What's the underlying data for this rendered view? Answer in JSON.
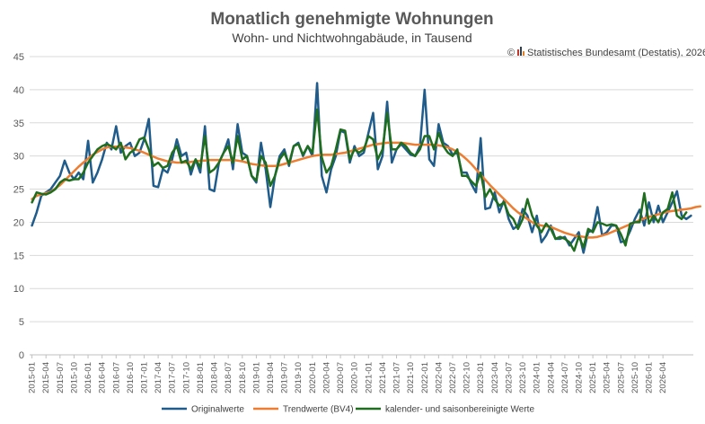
{
  "chart_data": {
    "type": "line",
    "title": "Monatlich genehmigte Wohnungen",
    "subtitle": "Wohn- und Nichtwohngabäude, in Tausend",
    "source": "Statistisches Bundesamt (Destatis), 2026",
    "ylim": [
      0,
      45
    ],
    "yticks": [
      0,
      5,
      10,
      15,
      20,
      25,
      30,
      35,
      40,
      45
    ],
    "grid": true,
    "legend_position": "bottom",
    "x_start": "2015-01",
    "x_tick_labels": [
      "2015-01",
      "2015-04",
      "2015-07",
      "2015-10",
      "2016-01",
      "2016-04",
      "2016-07",
      "2016-10",
      "2017-01",
      "2017-04",
      "2017-07",
      "2017-10",
      "2018-01",
      "2018-04",
      "2018-07",
      "2018-10",
      "2019-01",
      "2019-04",
      "2019-07",
      "2019-10",
      "2020-01",
      "2020-04",
      "2020-07",
      "2020-10",
      "2021-01",
      "2021-04",
      "2021-07",
      "2021-10",
      "2022-01",
      "2022-04",
      "2022-07",
      "2022-10",
      "2023-01",
      "2023-04",
      "2023-07",
      "2023-10",
      "2024-01",
      "2024-04",
      "2024-07",
      "2024-10",
      "2025-01",
      "2025-04",
      "2025-07",
      "2025-10",
      "2026-01",
      "2026-04"
    ],
    "series": [
      {
        "name": "Originalwerte",
        "color": "#1f5c8b",
        "width": 2.5,
        "values": [
          19.5,
          21.5,
          24,
          24.5,
          25,
          26,
          27,
          29.3,
          27.5,
          26.5,
          27.5,
          26.5,
          32.3,
          26,
          27.5,
          29.5,
          32,
          31,
          34.5,
          30.5,
          31.5,
          32,
          30,
          30.5,
          32.5,
          35.6,
          25.5,
          25.3,
          28,
          27.5,
          29.5,
          32.5,
          30,
          30.5,
          27.2,
          29.5,
          27.5,
          34.5,
          25,
          24.7,
          29,
          30.5,
          32.5,
          28,
          34.8,
          30.5,
          30,
          27,
          26,
          32,
          28,
          22.3,
          27,
          30,
          31,
          28.5,
          31.5,
          32,
          30,
          31.5,
          30,
          41,
          27,
          24.5,
          28,
          30,
          33.8,
          33.5,
          29,
          31.5,
          30,
          30.5,
          33.5,
          36.5,
          28,
          30,
          38.2,
          29,
          31,
          31.8,
          31,
          30.2,
          30,
          31.5,
          40,
          29.5,
          28.5,
          34.8,
          32,
          31.5,
          30.2,
          30.5,
          27.5,
          27.5,
          25.8,
          24.5,
          32.7,
          22,
          22.2,
          24.5,
          21.5,
          23.3,
          20.5,
          19,
          19.5,
          22,
          21,
          18.5,
          21,
          17,
          18,
          19.5,
          17.5,
          17.5,
          17.8,
          16.5,
          17.5,
          18.5,
          15.4,
          18.5,
          18.8,
          22.3,
          18,
          18.5,
          19.5,
          19.5,
          17,
          17.2,
          18.7,
          20.5,
          21.9,
          19.5,
          23,
          20,
          22.5,
          20,
          21.5,
          23,
          24.7,
          21,
          20.5,
          21
        ]
      },
      {
        "name": "Trendwerte (BV4)",
        "color": "#ed7d31",
        "width": 2.5,
        "values": [
          23.5,
          24,
          24.2,
          24.4,
          24.6,
          25.1,
          25.6,
          26.3,
          27,
          27.7,
          28.4,
          29,
          29.6,
          30.2,
          30.6,
          31,
          31.3,
          31.4,
          31.4,
          31.4,
          31.3,
          31.2,
          31,
          30.8,
          30.5,
          30.2,
          29.9,
          29.6,
          29.4,
          29.2,
          29.1,
          29,
          29,
          29,
          29.1,
          29.2,
          29.3,
          29.3,
          29.4,
          29.4,
          29.4,
          29.4,
          29.4,
          29.4,
          29.3,
          29.2,
          29,
          28.8,
          28.7,
          28.6,
          28.5,
          28.5,
          28.5,
          28.6,
          28.8,
          29,
          29.2,
          29.4,
          29.6,
          29.8,
          30,
          30.1,
          30.2,
          30.2,
          30.2,
          30.3,
          30.4,
          30.5,
          30.7,
          30.9,
          31.1,
          31.3,
          31.5,
          31.7,
          31.8,
          31.9,
          32,
          32,
          32,
          32,
          31.9,
          31.8,
          31.7,
          31.7,
          31.7,
          31.7,
          31.7,
          31.6,
          31.5,
          31.3,
          31,
          30.6,
          30.1,
          29.5,
          28.8,
          28,
          27.2,
          26.4,
          25.6,
          24.9,
          24.2,
          23.5,
          22.8,
          22.1,
          21.5,
          21,
          20.5,
          20,
          19.7,
          19.5,
          19.4,
          19.3,
          19,
          18.7,
          18.4,
          18.2,
          18,
          17.9,
          17.8,
          17.7,
          17.7,
          17.8,
          18,
          18.2,
          18.5,
          18.8,
          19.1,
          19.4,
          19.7,
          20,
          20.3,
          20.6,
          20.8,
          21,
          21.2,
          21.4,
          21.6,
          21.7,
          21.8,
          21.9,
          22,
          22.1,
          22.3,
          22.4
        ]
      },
      {
        "name": "kalender- und saisonbereinigte Werte",
        "color": "#1f6e1f",
        "width": 2.5,
        "values": [
          23,
          24.5,
          24.3,
          24.2,
          24.5,
          25,
          26,
          26.5,
          26.3,
          26.5,
          26.5,
          27.5,
          29,
          30,
          31,
          31.5,
          31.8,
          31.5,
          31,
          32,
          29.5,
          30.5,
          31,
          32.5,
          32.8,
          31,
          28.5,
          29,
          28.2,
          28.5,
          30.5,
          31.5,
          29,
          29.3,
          28,
          29.5,
          28.3,
          33,
          27.5,
          28,
          29,
          30.5,
          31.5,
          29,
          33,
          29.5,
          30,
          27,
          26.3,
          30,
          29,
          25.5,
          27,
          29.5,
          30.5,
          28.8,
          31.5,
          31.8,
          30.2,
          31.5,
          30.5,
          37,
          29.8,
          27.5,
          28.5,
          31,
          34,
          33.8,
          29.5,
          31,
          30.5,
          31,
          33,
          32.5,
          29.5,
          31,
          36.5,
          31,
          31,
          32,
          31.5,
          30.5,
          30,
          31,
          33,
          33,
          31,
          33.5,
          31.5,
          30.5,
          30,
          31,
          27,
          27,
          26.2,
          25.5,
          27.5,
          23.8,
          25,
          23.5,
          22.5,
          23,
          21.2,
          20.5,
          19,
          20.5,
          23.5,
          21,
          19.5,
          18.5,
          19.8,
          19,
          17.5,
          17.8,
          17.5,
          17,
          15.7,
          17.9,
          16.2,
          19,
          18.5,
          20,
          19.8,
          19.5,
          19.7,
          19.5,
          18.2,
          16.5,
          19.8,
          20,
          20,
          24.4,
          19.8,
          21,
          20,
          21.5,
          22,
          24.5,
          21,
          20.5,
          21.5
        ]
      }
    ]
  },
  "icons": {
    "copyright": "©",
    "logo": "destatis-logo-icon"
  }
}
